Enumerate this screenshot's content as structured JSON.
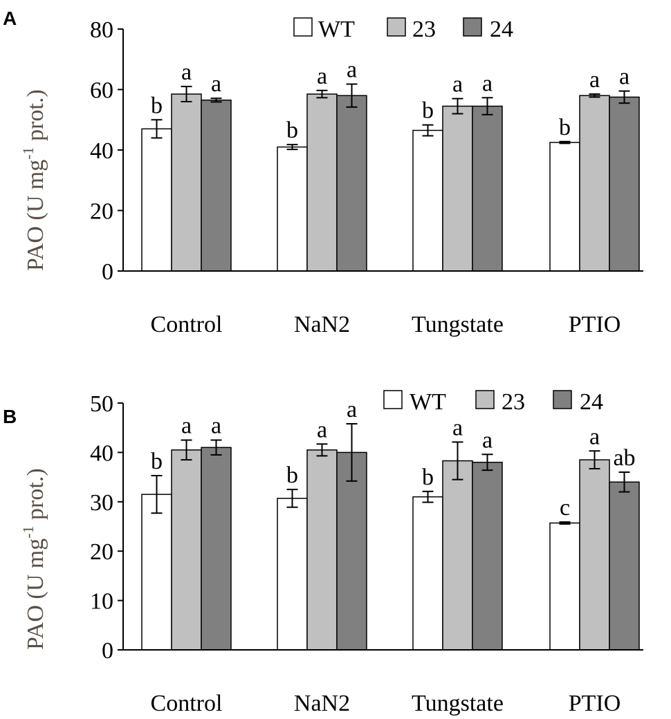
{
  "figure": {
    "colors": {
      "wt": "#ffffff",
      "s23": "#c0c0c0",
      "s24": "#808080",
      "stroke": "#000000",
      "ylabel": "#5a4f46"
    }
  },
  "chart_data": [
    {
      "type": "bar",
      "panel_label": "A",
      "categories": [
        "Control",
        "NaN2",
        "Tungstate",
        "PTIO"
      ],
      "ylabel": {
        "main": "PAO (U mg",
        "sup": "-1",
        "tail": " prot.)"
      },
      "ylim": [
        0,
        80
      ],
      "yticks": [
        0,
        20,
        40,
        60,
        80
      ],
      "legend": [
        "WT",
        "23",
        "24"
      ],
      "series": [
        {
          "name": "WT",
          "values": [
            47,
            41,
            46.5,
            42.5
          ],
          "errors": [
            3,
            0.8,
            1.8,
            0.3
          ],
          "letters": [
            "b",
            "b",
            "b",
            "b"
          ]
        },
        {
          "name": "23",
          "values": [
            58.5,
            58.5,
            54.5,
            58
          ],
          "errors": [
            2.5,
            1.2,
            2.5,
            0.5
          ],
          "letters": [
            "a",
            "a",
            "a",
            "a"
          ]
        },
        {
          "name": "24",
          "values": [
            56.5,
            58,
            54.5,
            57.5
          ],
          "errors": [
            0.6,
            3.8,
            2.8,
            2
          ],
          "letters": [
            "a",
            "a",
            "a",
            "a"
          ]
        }
      ]
    },
    {
      "type": "bar",
      "panel_label": "B",
      "categories": [
        "Control",
        "NaN2",
        "Tungstate",
        "PTIO"
      ],
      "ylabel": {
        "main": "PAO (U mg",
        "sup": "-1",
        "tail": " prot.)"
      },
      "ylim": [
        0,
        50
      ],
      "yticks": [
        0,
        10,
        20,
        30,
        40,
        50
      ],
      "legend": [
        "WT",
        "23",
        "24"
      ],
      "series": [
        {
          "name": "WT",
          "values": [
            31.5,
            30.7,
            31,
            25.7
          ],
          "errors": [
            3.8,
            1.8,
            1.1,
            0.2
          ],
          "letters": [
            "b",
            "b",
            "b",
            "c"
          ]
        },
        {
          "name": "23",
          "values": [
            40.5,
            40.5,
            38.3,
            38.5
          ],
          "errors": [
            2,
            1.2,
            3.8,
            1.8
          ],
          "letters": [
            "a",
            "a",
            "a",
            "a"
          ]
        },
        {
          "name": "24",
          "values": [
            41,
            40,
            38,
            34
          ],
          "errors": [
            1.5,
            5.8,
            1.6,
            2
          ],
          "letters": [
            "a",
            "a",
            "a",
            "ab"
          ]
        }
      ]
    }
  ]
}
